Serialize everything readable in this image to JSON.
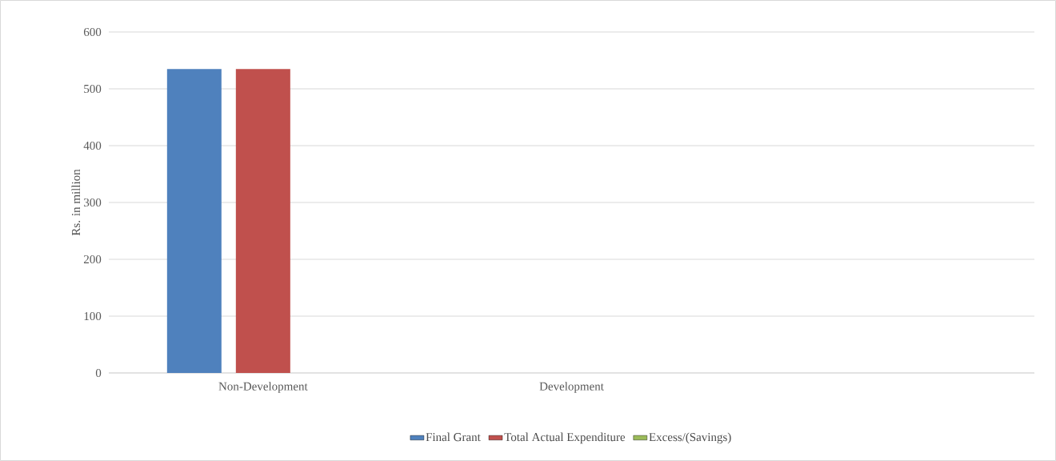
{
  "chart_data": {
    "type": "bar",
    "ylabel": "Rs. in million",
    "categories": [
      "Non-Development",
      "Development",
      null
    ],
    "series": [
      {
        "name": "Final Grant",
        "color": "#4f81bd",
        "values": [
          535,
          0,
          0
        ]
      },
      {
        "name": "Total Actual Expenditure",
        "color": "#c0504d",
        "values": [
          535,
          0,
          0
        ]
      },
      {
        "name": "Excess/(Savings)",
        "color": "#9bbb59",
        "values": [
          0,
          0,
          0
        ]
      }
    ],
    "ylim": [
      0,
      600
    ],
    "yticks": [
      0,
      100,
      200,
      300,
      400,
      500,
      600
    ],
    "grid": "y",
    "legend": "bottom"
  }
}
